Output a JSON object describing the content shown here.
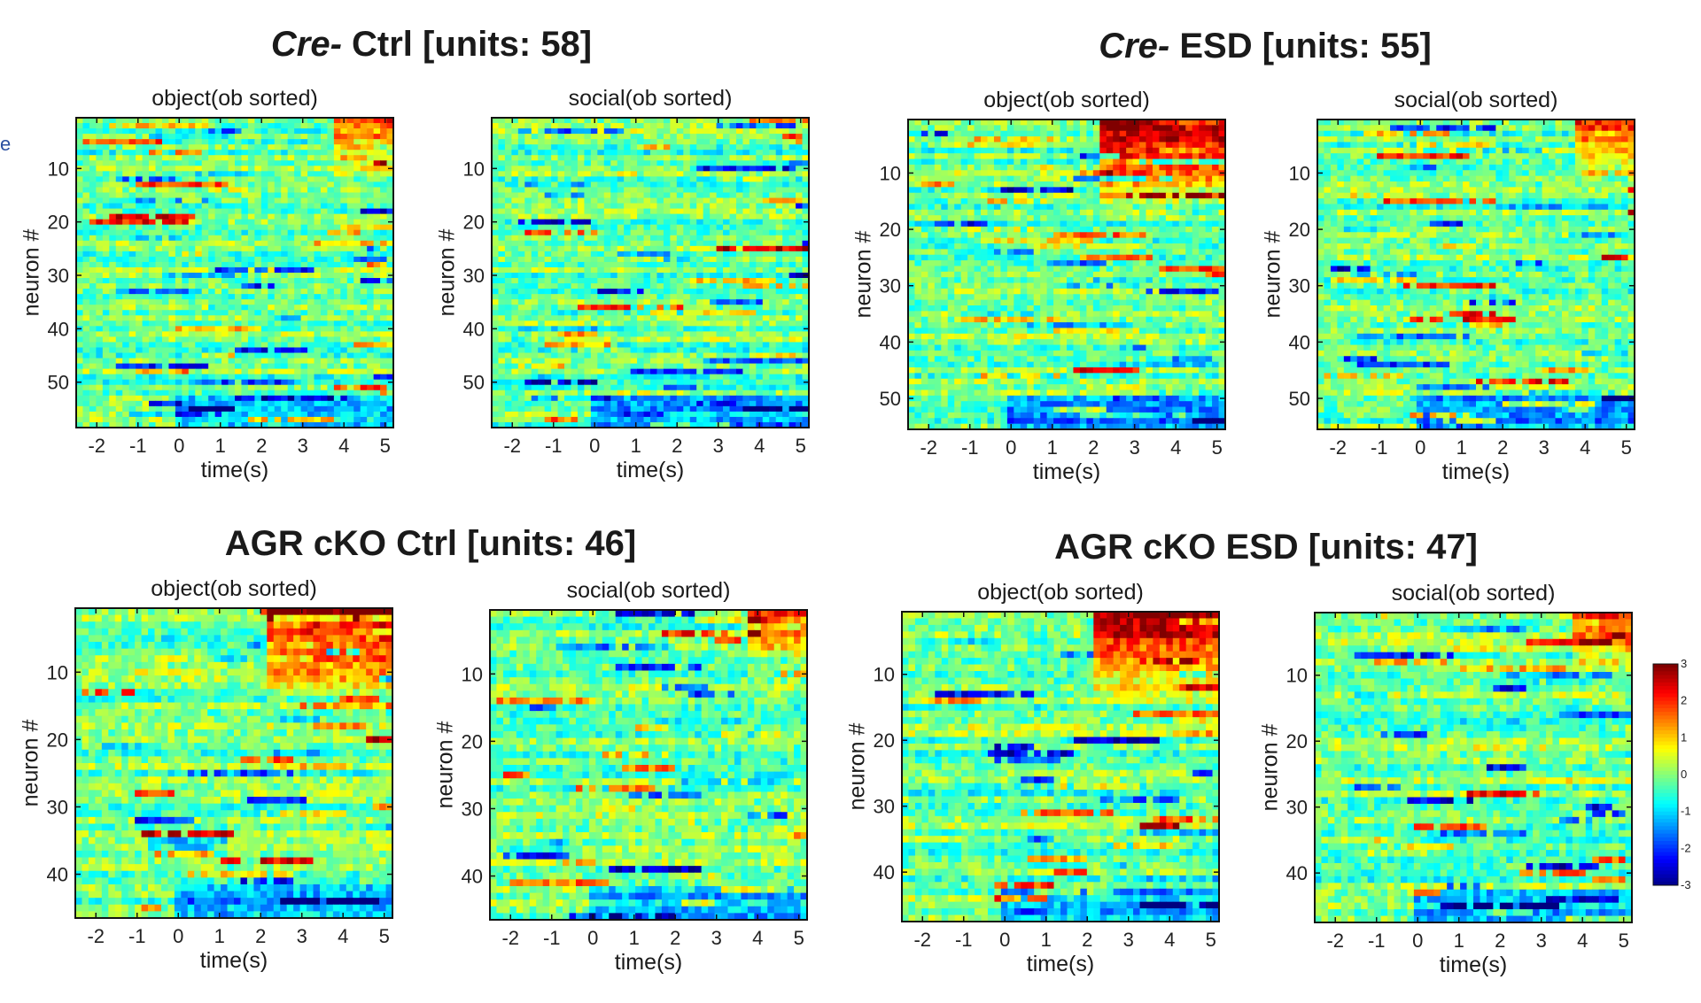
{
  "stray_label": "e",
  "groups": [
    {
      "id": "g1",
      "title_italic": "Cre-",
      "title_rest": " Ctrl [units: 58]",
      "units": 58,
      "panels": [
        {
          "title": "object(ob sorted)",
          "xlabel": "time(s)",
          "ylabel": "neuron #",
          "yticks": [
            10,
            20,
            30,
            40,
            50
          ]
        },
        {
          "title": "social(ob sorted)",
          "xlabel": "time(s)",
          "ylabel": "neuron #",
          "yticks": [
            10,
            20,
            30,
            40,
            50
          ]
        }
      ]
    },
    {
      "id": "g2",
      "title_italic": "Cre-",
      "title_rest": " ESD [units: 55]",
      "units": 55,
      "panels": [
        {
          "title": "object(ob sorted)",
          "xlabel": "time(s)",
          "ylabel": "neuron #",
          "yticks": [
            10,
            20,
            30,
            40,
            50
          ]
        },
        {
          "title": "social(ob sorted)",
          "xlabel": "time(s)",
          "ylabel": "neuron #",
          "yticks": [
            10,
            20,
            30,
            40,
            50
          ]
        }
      ]
    },
    {
      "id": "g3",
      "title_italic": "",
      "title_rest": "AGR cKO Ctrl [units: 46]",
      "units": 46,
      "panels": [
        {
          "title": "object(ob sorted)",
          "xlabel": "time(s)",
          "ylabel": "neuron #",
          "yticks": [
            10,
            20,
            30,
            40
          ]
        },
        {
          "title": "social(ob sorted)",
          "xlabel": "time(s)",
          "ylabel": "neuron #",
          "yticks": [
            10,
            20,
            30,
            40
          ]
        }
      ]
    },
    {
      "id": "g4",
      "title_italic": "",
      "title_rest": "AGR cKO ESD [units: 47]",
      "units": 47,
      "panels": [
        {
          "title": "object(ob sorted)",
          "xlabel": "time(s)",
          "ylabel": "neuron #",
          "yticks": [
            10,
            20,
            30,
            40
          ]
        },
        {
          "title": "social(ob sorted)",
          "xlabel": "time(s)",
          "ylabel": "neuron #",
          "yticks": [
            10,
            20,
            30,
            40
          ]
        }
      ]
    }
  ],
  "chart_data": {
    "type": "heatmap",
    "xlim": [
      -2.5,
      5.2
    ],
    "xticks": [
      -2,
      -1,
      0,
      1,
      2,
      3,
      4,
      5
    ],
    "colorbar": {
      "min": -3,
      "max": 3,
      "ticks": [
        -3,
        -2,
        -1,
        0,
        1,
        2,
        3
      ],
      "colormap": "jet"
    }
  }
}
